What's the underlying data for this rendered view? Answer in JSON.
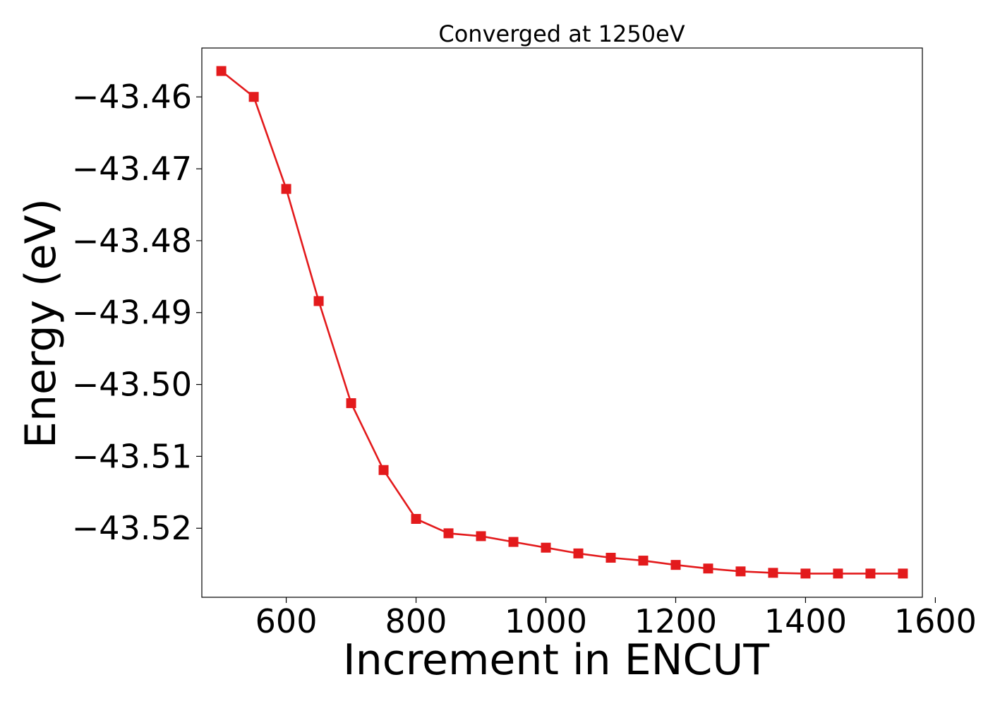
{
  "chart_data": {
    "type": "line",
    "title": "Converged at 1250eV",
    "xlabel": "Increment in ENCUT",
    "ylabel": "Energy (eV)",
    "xlim": [
      470,
      1580
    ],
    "ylim": [
      -43.5296,
      -43.4532
    ],
    "xticks": [
      600,
      800,
      1000,
      1200,
      1400,
      1600
    ],
    "xtick_labels": [
      "600",
      "800",
      "1000",
      "1200",
      "1400",
      "1600"
    ],
    "yticks": [
      -43.46,
      -43.47,
      -43.48,
      -43.49,
      -43.5,
      -43.51,
      -43.52
    ],
    "ytick_labels": [
      "−43.46",
      "−43.47",
      "−43.48",
      "−43.49",
      "−43.50",
      "−43.51",
      "−43.52"
    ],
    "grid": false,
    "marker": "square",
    "series": [
      {
        "color": "#e31a1c",
        "x": [
          500,
          550,
          600,
          650,
          700,
          750,
          800,
          850,
          900,
          950,
          1000,
          1050,
          1100,
          1150,
          1200,
          1250,
          1300,
          1350,
          1400,
          1450,
          1500,
          1550
        ],
        "y": [
          -43.4564,
          -43.46,
          -43.4728,
          -43.4884,
          -43.5026,
          -43.5119,
          -43.5187,
          -43.5207,
          -43.5211,
          -43.5219,
          -43.5227,
          -43.5235,
          -43.5241,
          -43.5245,
          -43.5251,
          -43.5256,
          -43.526,
          -43.5262,
          -43.5263,
          -43.5263,
          -43.5263,
          -43.5263
        ]
      }
    ]
  }
}
